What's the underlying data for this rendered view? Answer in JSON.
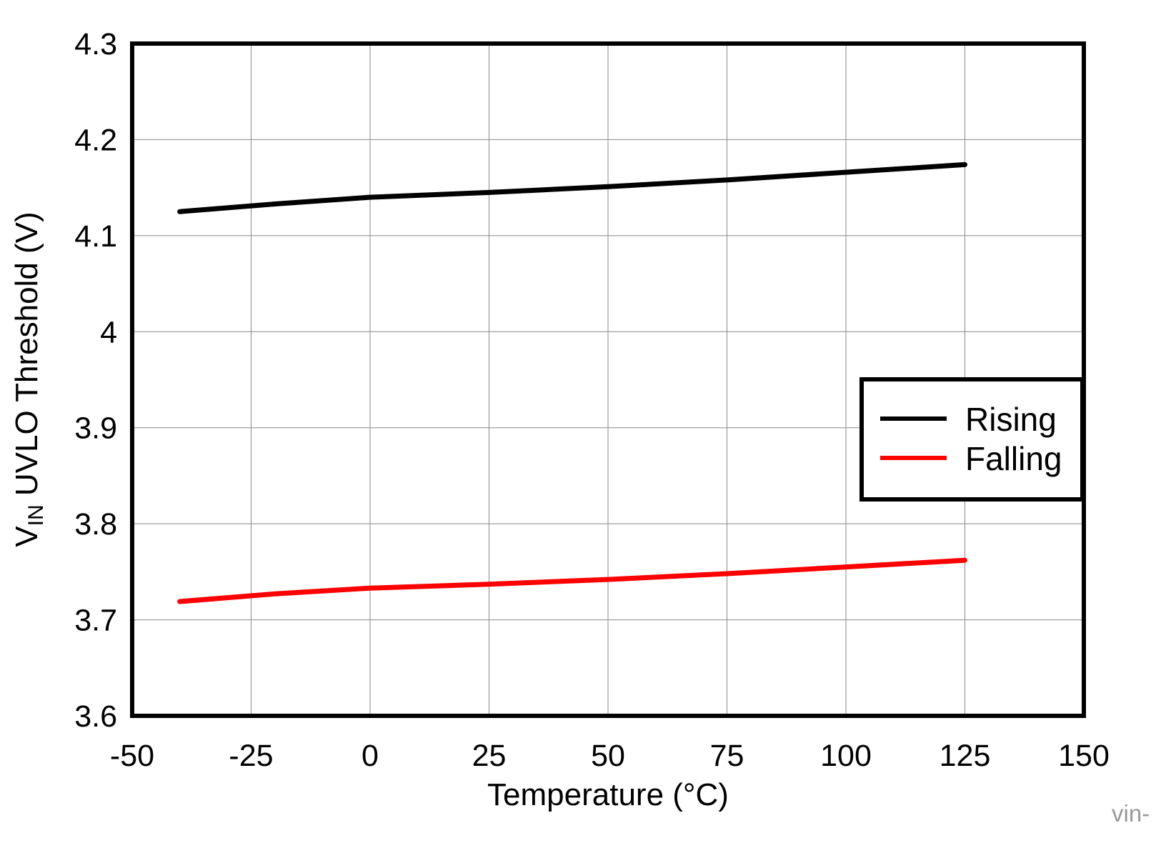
{
  "chart_data": {
    "type": "line",
    "xlabel": "Temperature (°C)",
    "ylabel_main": "V",
    "ylabel_sub": "IN",
    "ylabel_rest": " UVLO Threshold (V)",
    "xlim": [
      -50,
      150
    ],
    "ylim": [
      3.6,
      4.3
    ],
    "xticks": [
      "-50",
      "-25",
      "0",
      "25",
      "50",
      "75",
      "100",
      "125",
      "150"
    ],
    "yticks": [
      "3.6",
      "3.7",
      "3.8",
      "3.9",
      "4",
      "4.1",
      "4.2",
      "4.3"
    ],
    "grid": true,
    "legend_position": "right",
    "series": [
      {
        "name": "Rising",
        "color": "#000000",
        "x": [
          -40,
          -20,
          0,
          25,
          50,
          75,
          100,
          125
        ],
        "y": [
          4.125,
          4.133,
          4.14,
          4.145,
          4.151,
          4.158,
          4.166,
          4.174
        ]
      },
      {
        "name": "Falling",
        "color": "#ff0000",
        "x": [
          -40,
          -20,
          0,
          25,
          50,
          75,
          100,
          125
        ],
        "y": [
          3.719,
          3.727,
          3.733,
          3.737,
          3.742,
          3.748,
          3.755,
          3.762
        ]
      }
    ],
    "annotation": "vin-"
  }
}
